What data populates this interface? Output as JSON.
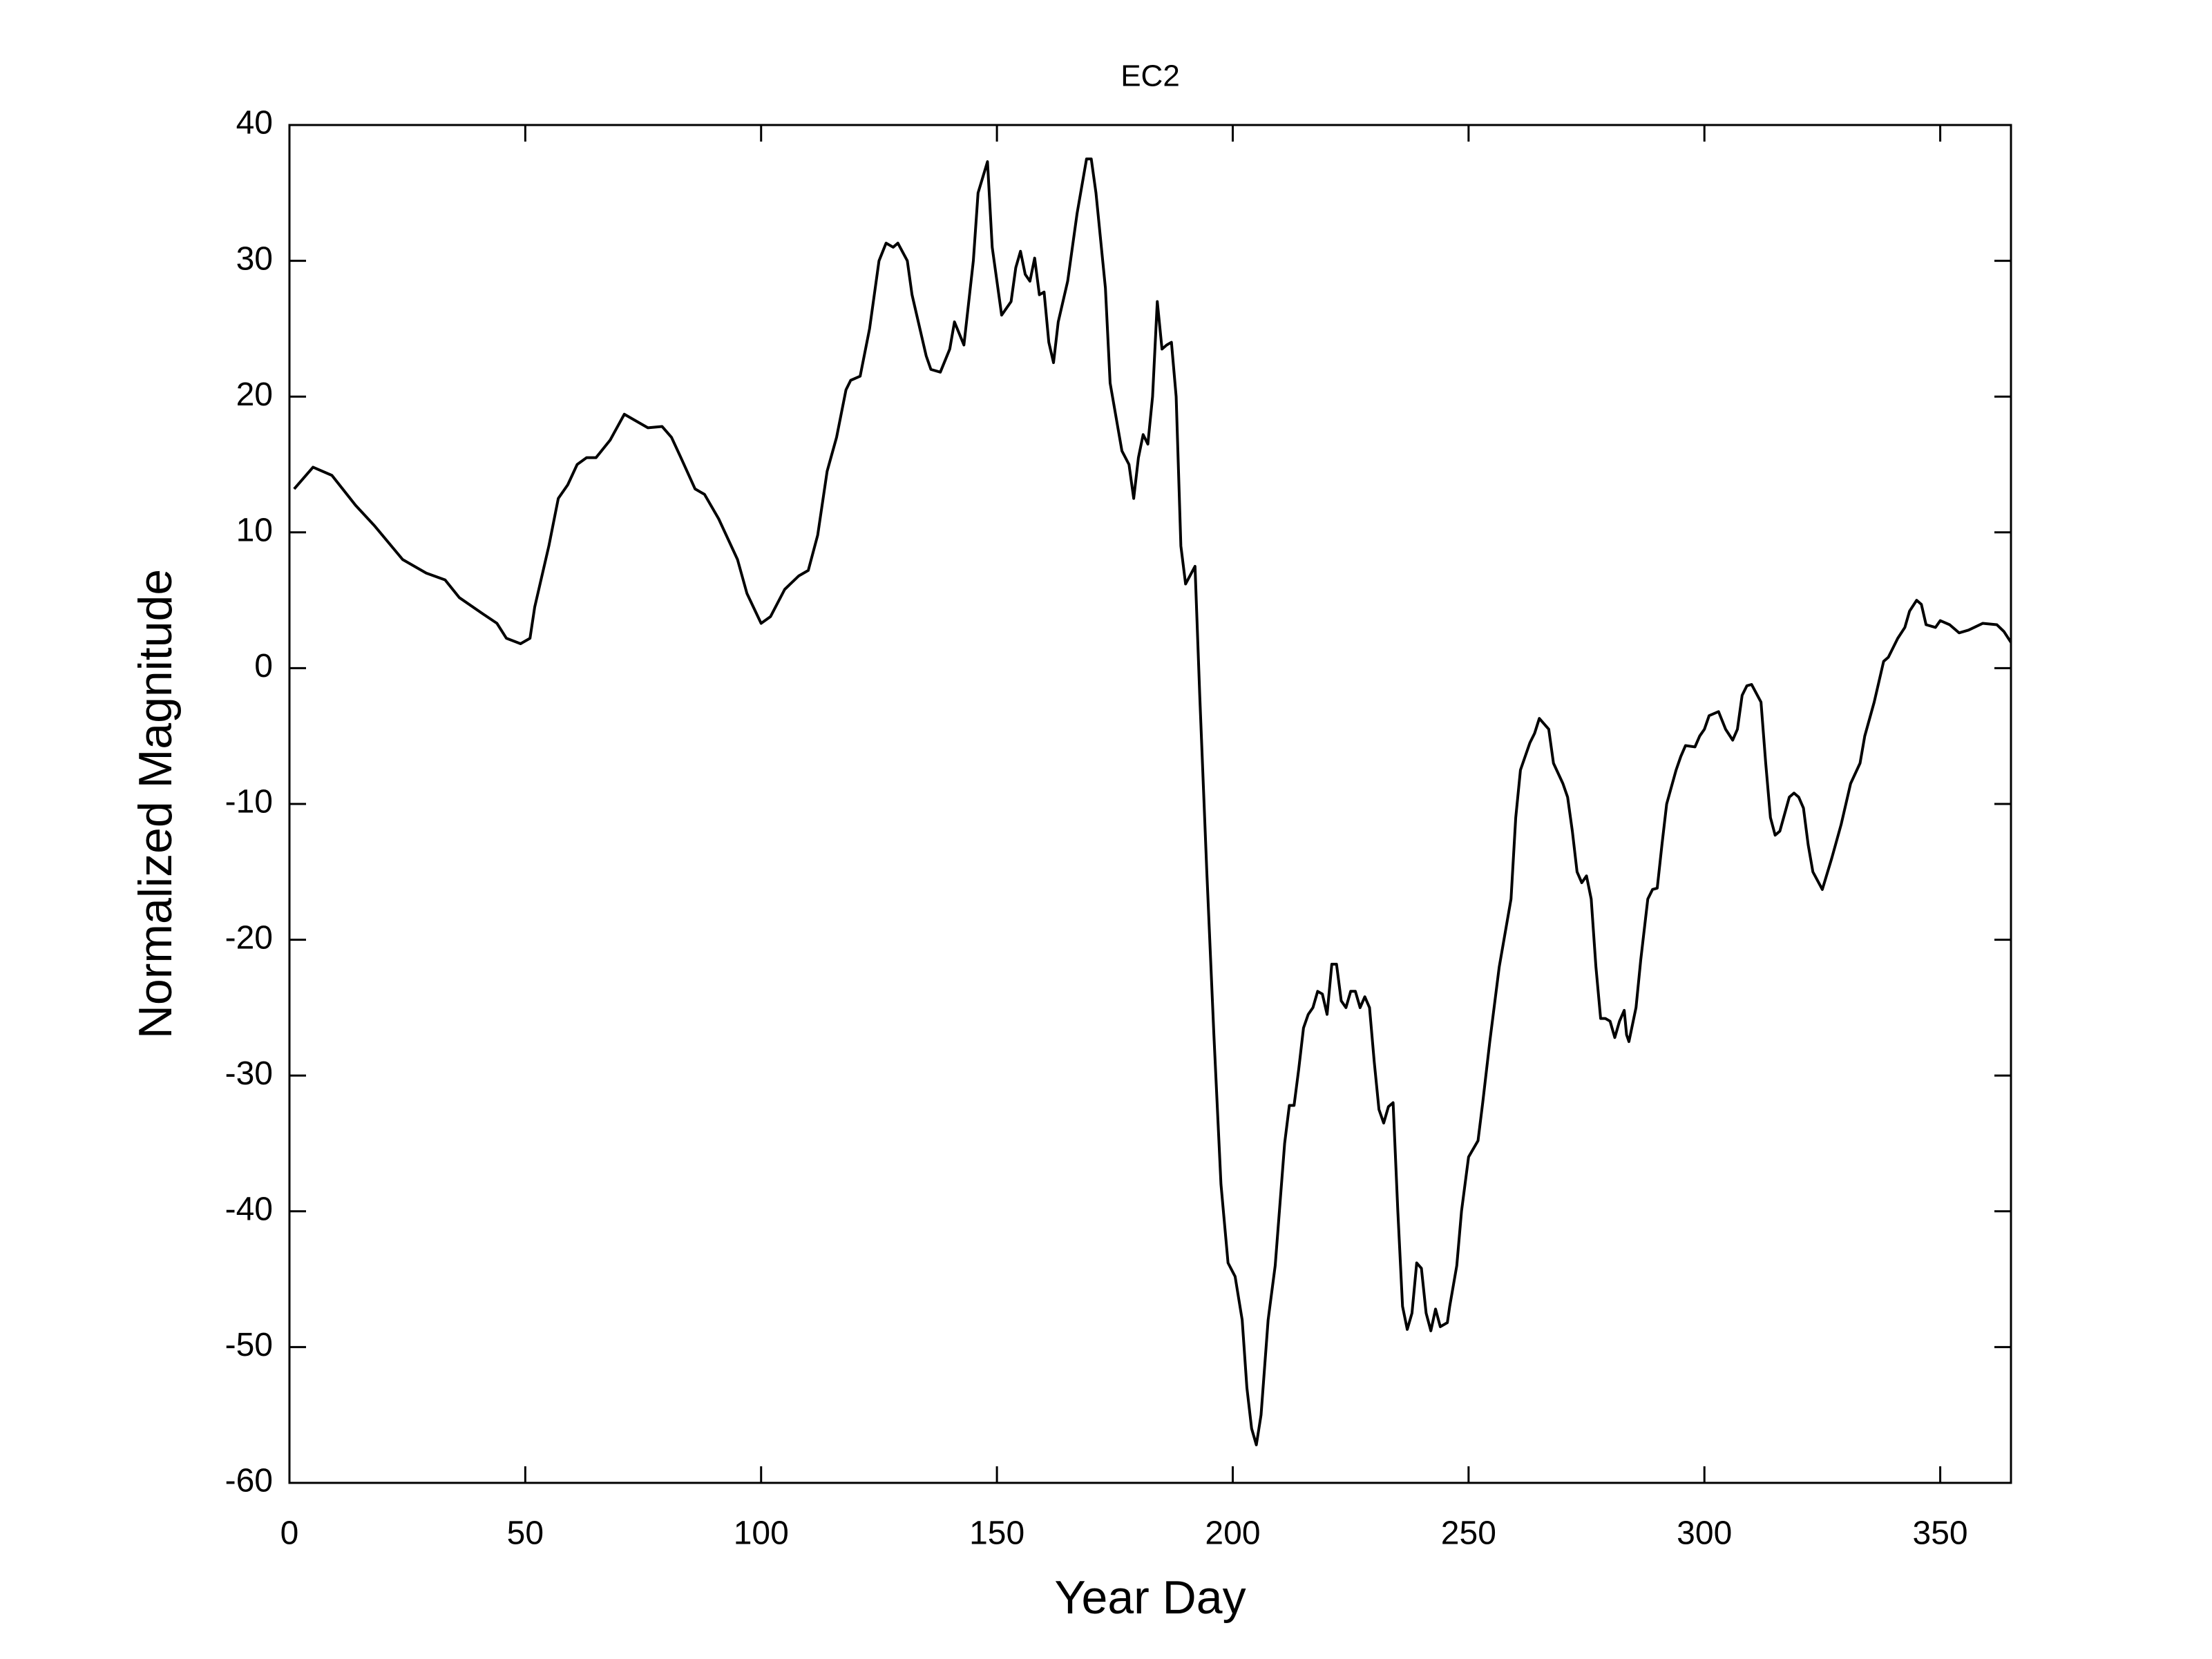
{
  "chart_data": {
    "type": "line",
    "title": "EC2",
    "xlabel": "Year Day",
    "ylabel": "Normalized Magnitude",
    "xlim": [
      0,
      365
    ],
    "xticks": [
      0,
      50,
      100,
      150,
      200,
      250,
      300,
      350
    ],
    "ylim": [
      -60,
      40
    ],
    "yticks": [
      -60,
      -50,
      -40,
      -30,
      -20,
      -10,
      0,
      10,
      20,
      30,
      40
    ],
    "grid": false,
    "series": [
      {
        "name": "EC2",
        "color": "#000000",
        "x": [
          1,
          5,
          9,
          14,
          18,
          24,
          29,
          33,
          36,
          41,
          44,
          46,
          49,
          51,
          52,
          55,
          57,
          59,
          61,
          63,
          65,
          68,
          71,
          73,
          76,
          79,
          81,
          83,
          86,
          88,
          91,
          95,
          97,
          100,
          102,
          105,
          108,
          110,
          112,
          114,
          116,
          118,
          119,
          121,
          123,
          125,
          126.5,
          128,
          129,
          131,
          132,
          133,
          135,
          136,
          138,
          140,
          141,
          143,
          145,
          146,
          148,
          149,
          151,
          153,
          154,
          155,
          156,
          157,
          158,
          159,
          160,
          161,
          162,
          163,
          165,
          167,
          169,
          170,
          171,
          173,
          174,
          176,
          176.5,
          178,
          179,
          180,
          181,
          182,
          183,
          184,
          185,
          186,
          187,
          188,
          189,
          190,
          192,
          193,
          194.5,
          196,
          197.5,
          199,
          200.5,
          202,
          203,
          204,
          205,
          206,
          207.5,
          209,
          211,
          212,
          213,
          214,
          215,
          216,
          217,
          218,
          219,
          220,
          221,
          222,
          223,
          224,
          225,
          226,
          227,
          228,
          229,
          230,
          231,
          232,
          233,
          234,
          235,
          236,
          237,
          238,
          239,
          240,
          241,
          242,
          243,
          244,
          245.5,
          246,
          247.5,
          248.5,
          250,
          252,
          253,
          254.5,
          256.5,
          259,
          260,
          261,
          263,
          264,
          265,
          267,
          268,
          270,
          271,
          272,
          273,
          274,
          275,
          276,
          277,
          278,
          279,
          280,
          281,
          282,
          283,
          283.5,
          284,
          285.5,
          286.5,
          288,
          289,
          290,
          291,
          292,
          294,
          295,
          296,
          298,
          299,
          300,
          301,
          303,
          304.5,
          306,
          307,
          308,
          309,
          310,
          312,
          313,
          314,
          315,
          316,
          318,
          319,
          320,
          321,
          322,
          323,
          325,
          327,
          329,
          331,
          333,
          334,
          336,
          338,
          339,
          341,
          342.5,
          343.5,
          345,
          346,
          347,
          349,
          350,
          352,
          354,
          356,
          359,
          362,
          363.5,
          365
        ],
        "values": [
          13.2,
          14.8,
          14.2,
          12,
          10.5,
          8,
          7,
          6.5,
          5.2,
          4,
          3.3,
          2.2,
          1.8,
          2.2,
          4.5,
          9,
          12.5,
          13.5,
          15,
          15.5,
          15.5,
          16.8,
          18.7,
          18.3,
          17.7,
          17.8,
          17,
          15.5,
          13.2,
          12.8,
          11,
          8,
          5.5,
          3.3,
          3.8,
          5.8,
          6.8,
          7.2,
          9.8,
          14.5,
          17,
          20.5,
          21.2,
          21.5,
          25,
          30,
          31.3,
          31,
          31.3,
          30,
          27.5,
          26,
          23,
          22,
          21.8,
          23.5,
          25.5,
          23.8,
          30,
          35,
          37.3,
          31,
          26,
          27,
          29.5,
          30.7,
          29,
          28.5,
          30.2,
          27.5,
          27.7,
          24,
          22.5,
          25.5,
          28.5,
          33.5,
          37.5,
          37.5,
          35,
          28,
          21,
          17,
          16,
          15,
          12.5,
          15.5,
          17.2,
          16.5,
          20,
          27,
          23.5,
          23.8,
          24,
          20,
          9,
          6.2,
          7.5,
          -2,
          -15,
          -27,
          -38,
          -43.8,
          -44.8,
          -48,
          -53,
          -56,
          -57.2,
          -55,
          -48,
          -44,
          -35,
          -32.2,
          -32.2,
          -29.5,
          -26.5,
          -25.5,
          -25,
          -23.8,
          -24,
          -25.5,
          -21.8,
          -21.8,
          -24.5,
          -25,
          -23.8,
          -23.8,
          -25,
          -24.2,
          -25,
          -29,
          -32.5,
          -33.5,
          -32.3,
          -32,
          -40,
          -47,
          -48.7,
          -47.5,
          -43.8,
          -44.2,
          -47.5,
          -48.8,
          -47.2,
          -48.5,
          -48.2,
          -47,
          -44,
          -40,
          -36,
          -34.8,
          -32,
          -27.5,
          -22,
          -17,
          -11,
          -7.5,
          -5.5,
          -4.8,
          -3.7,
          -4.5,
          -7,
          -8.5,
          -9.5,
          -12,
          -15,
          -15.8,
          -15.3,
          -17,
          -22,
          -25.8,
          -25.8,
          -26,
          -27.2,
          -26,
          -25.2,
          -27,
          -27.5,
          -25,
          -21.5,
          -17,
          -16.3,
          -16.2,
          -13,
          -10,
          -7.5,
          -6.5,
          -5.7,
          -5.8,
          -5,
          -4.5,
          -3.5,
          -3.2,
          -4.5,
          -5.3,
          -4.5,
          -2,
          -1.3,
          -1.2,
          -2.5,
          -7,
          -11,
          -12.3,
          -12,
          -9.5,
          -9.2,
          -9.5,
          -10.3,
          -13,
          -15,
          -16.3,
          -14,
          -11.5,
          -8.5,
          -7,
          -5,
          -2.5,
          0.5,
          0.8,
          2.2,
          3,
          4.2,
          5,
          4.7,
          3.2,
          3,
          3.5,
          3.2,
          2.6,
          2.8,
          3.3,
          3.2,
          2.7,
          1.9
        ]
      }
    ]
  }
}
